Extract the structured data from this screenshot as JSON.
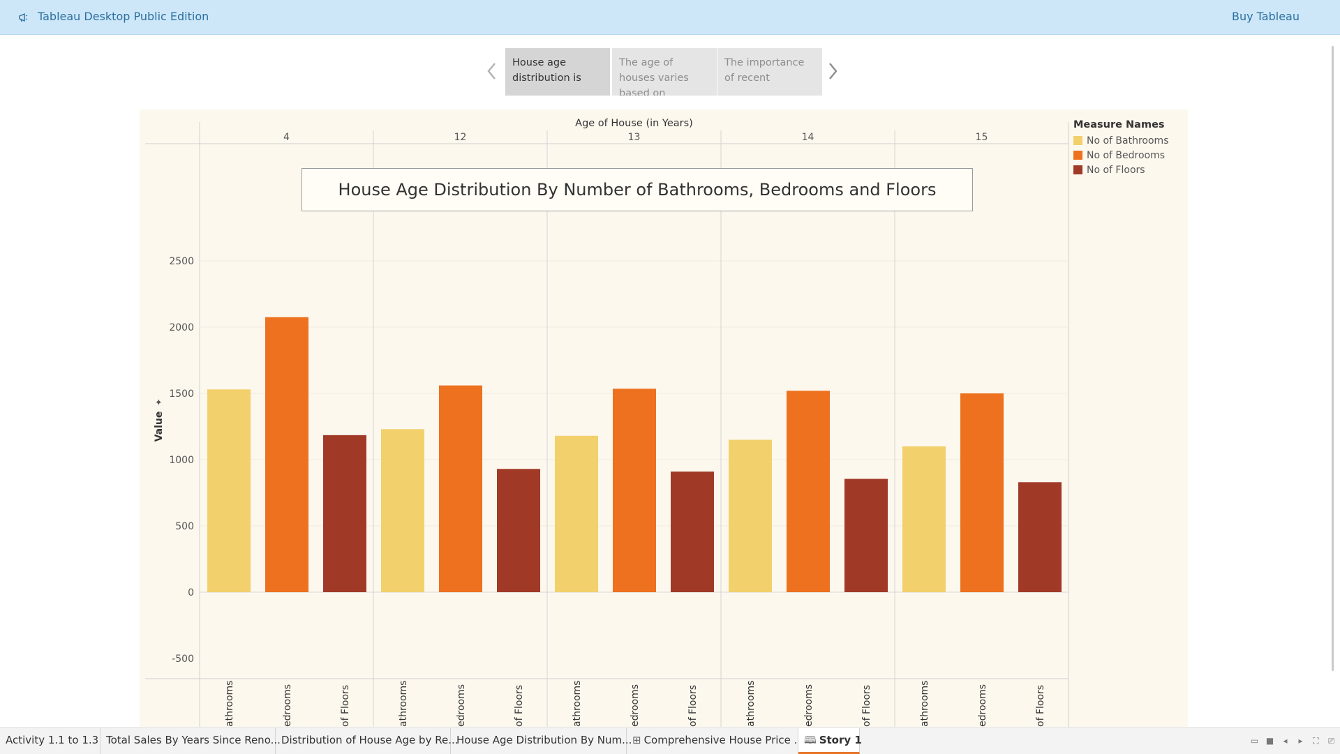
{
  "topbar": {
    "app_title": "Tableau Desktop Public Edition",
    "buy_label": "Buy Tableau",
    "logo_icon": "megaphone-icon"
  },
  "story": {
    "points": [
      {
        "text": "House age distribution is",
        "active": true
      },
      {
        "text": "The age of houses varies based on",
        "active": false
      },
      {
        "text": "The importance of recent",
        "active": false
      }
    ],
    "prev_icon": "chevron-left-icon",
    "next_icon": "chevron-right-icon"
  },
  "chart_title": "House Age Distribution By Number of Bathrooms, Bedrooms and Floors",
  "legend": {
    "title": "Measure Names",
    "items": [
      {
        "label": "No of Bathrooms",
        "color": "#f2d06b"
      },
      {
        "label": "No of Bedrooms",
        "color": "#ed711e"
      },
      {
        "label": "No of Floors",
        "color": "#a03a27"
      }
    ]
  },
  "chart_data": {
    "type": "bar",
    "title": "House Age Distribution By Number of Bathrooms, Bedrooms and Floors",
    "column_header": "Age of House (in Years)",
    "ylabel": "Value",
    "ylim": [
      -500,
      2750
    ],
    "yticks": [
      2500,
      2000,
      1500,
      1000,
      500,
      0,
      -500
    ],
    "groups": [
      "4",
      "12",
      "13",
      "14",
      "15"
    ],
    "bar_labels": [
      "athrooms",
      "edrooms",
      "of Floors"
    ],
    "series": [
      {
        "name": "No of Bathrooms",
        "color": "#f2d06b",
        "values": [
          1530,
          1230,
          1180,
          1150,
          1100
        ]
      },
      {
        "name": "No of Bedrooms",
        "color": "#ed711e",
        "values": [
          2075,
          1560,
          1535,
          1520,
          1500
        ]
      },
      {
        "name": "No of Floors",
        "color": "#a03a27",
        "values": [
          1185,
          930,
          910,
          855,
          830
        ]
      }
    ],
    "grid": true
  },
  "tabs": [
    {
      "label": "Activity 1.1 to 1.3",
      "icon": "",
      "active": false
    },
    {
      "label": "Total Sales By Years Since Reno...",
      "icon": "",
      "active": false
    },
    {
      "label": "Distribution of House Age by Re...",
      "icon": "",
      "active": false
    },
    {
      "label": "House Age Distribution By Num...",
      "icon": "",
      "active": false
    },
    {
      "label": "Comprehensive House Price ...",
      "icon": "⊞",
      "active": false
    },
    {
      "label": "Story 1",
      "icon": "🕮",
      "active": true
    }
  ]
}
